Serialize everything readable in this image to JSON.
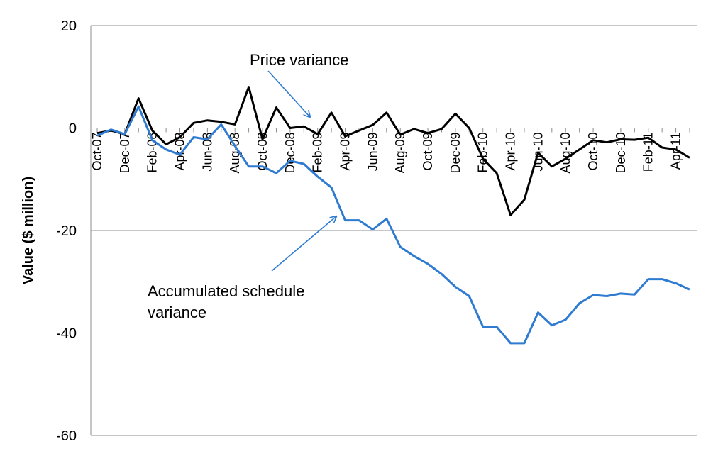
{
  "chart_data": {
    "type": "line",
    "ylabel": "Value ($ million)",
    "xlabel": "",
    "ylim": [
      -60,
      20
    ],
    "yticks": [
      20,
      0,
      -20,
      -40,
      -60
    ],
    "grid": "horizontal",
    "x": [
      "Oct-07",
      "Nov-07",
      "Dec-07",
      "Jan-08",
      "Feb-08",
      "Mar-08",
      "Apr-08",
      "May-08",
      "Jun-08",
      "Jul-08",
      "Aug-08",
      "Sep-08",
      "Oct-08",
      "Nov-08",
      "Dec-08",
      "Jan-09",
      "Feb-09",
      "Mar-09",
      "Apr-09",
      "May-09",
      "Jun-09",
      "Jul-09",
      "Aug-09",
      "Sep-09",
      "Oct-09",
      "Nov-09",
      "Dec-09",
      "Jan-10",
      "Feb-10",
      "Mar-10",
      "Apr-10",
      "May-10",
      "Jun-10",
      "Jul-10",
      "Aug-10",
      "Sep-10",
      "Oct-10",
      "Nov-10",
      "Dec-10",
      "Jan-11",
      "Feb-11",
      "Mar-11",
      "Apr-11",
      "May-11"
    ],
    "xtick_labels": [
      "Oct-07",
      "Dec-07",
      "Feb-08",
      "Apr-08",
      "Jun-08",
      "Aug-08",
      "Oct-08",
      "Dec-08",
      "Feb-09",
      "Apr-09",
      "Jun-09",
      "Aug-09",
      "Oct-09",
      "Dec-09",
      "Feb-10",
      "Apr-10",
      "Jun-10",
      "Aug-10",
      "Oct-10",
      "Dec-10",
      "Feb-11",
      "Apr-11"
    ],
    "series": [
      {
        "name": "Price variance",
        "color": "#000000",
        "values": [
          -1.0,
          -0.5,
          -1.2,
          5.8,
          -0.5,
          -3.2,
          -1.8,
          1.0,
          1.5,
          1.2,
          0.7,
          8.0,
          -2.2,
          4.0,
          0.0,
          0.3,
          -1.2,
          3.0,
          -1.6,
          -0.5,
          0.6,
          3.0,
          -1.3,
          -0.2,
          -1.0,
          -0.2,
          2.8,
          0.0,
          -6.0,
          -8.8,
          -17.0,
          -14.0,
          -4.8,
          -7.5,
          -6.0,
          -4.2,
          -2.4,
          -2.8,
          -2.2,
          -2.3,
          -1.9,
          -3.8,
          -4.2,
          -5.8
        ]
      },
      {
        "name": "Accumulated schedule variance",
        "color": "#2e7bd1",
        "values": [
          -1.5,
          -0.3,
          -1.2,
          4.2,
          -2.4,
          -4.2,
          -5.2,
          -1.8,
          -2.2,
          0.7,
          -3.5,
          -7.5,
          -7.5,
          -8.8,
          -6.4,
          -7.0,
          -9.5,
          -11.6,
          -18.0,
          -18.0,
          -19.8,
          -17.7,
          -23.2,
          -25.0,
          -26.5,
          -28.5,
          -31.0,
          -32.8,
          -38.8,
          -38.8,
          -42.0,
          -42.0,
          -36.0,
          -38.5,
          -37.4,
          -34.2,
          -32.6,
          -32.8,
          -32.3,
          -32.5,
          -29.5,
          -29.5,
          -30.3,
          -31.5
        ]
      }
    ],
    "annotations": [
      {
        "text_lines": [
          "Price variance"
        ],
        "target_series": "Price variance"
      },
      {
        "text_lines": [
          "Accumulated schedule",
          "variance"
        ],
        "target_series": "Accumulated schedule variance"
      }
    ],
    "arrow_color": "#2e7bd1"
  }
}
